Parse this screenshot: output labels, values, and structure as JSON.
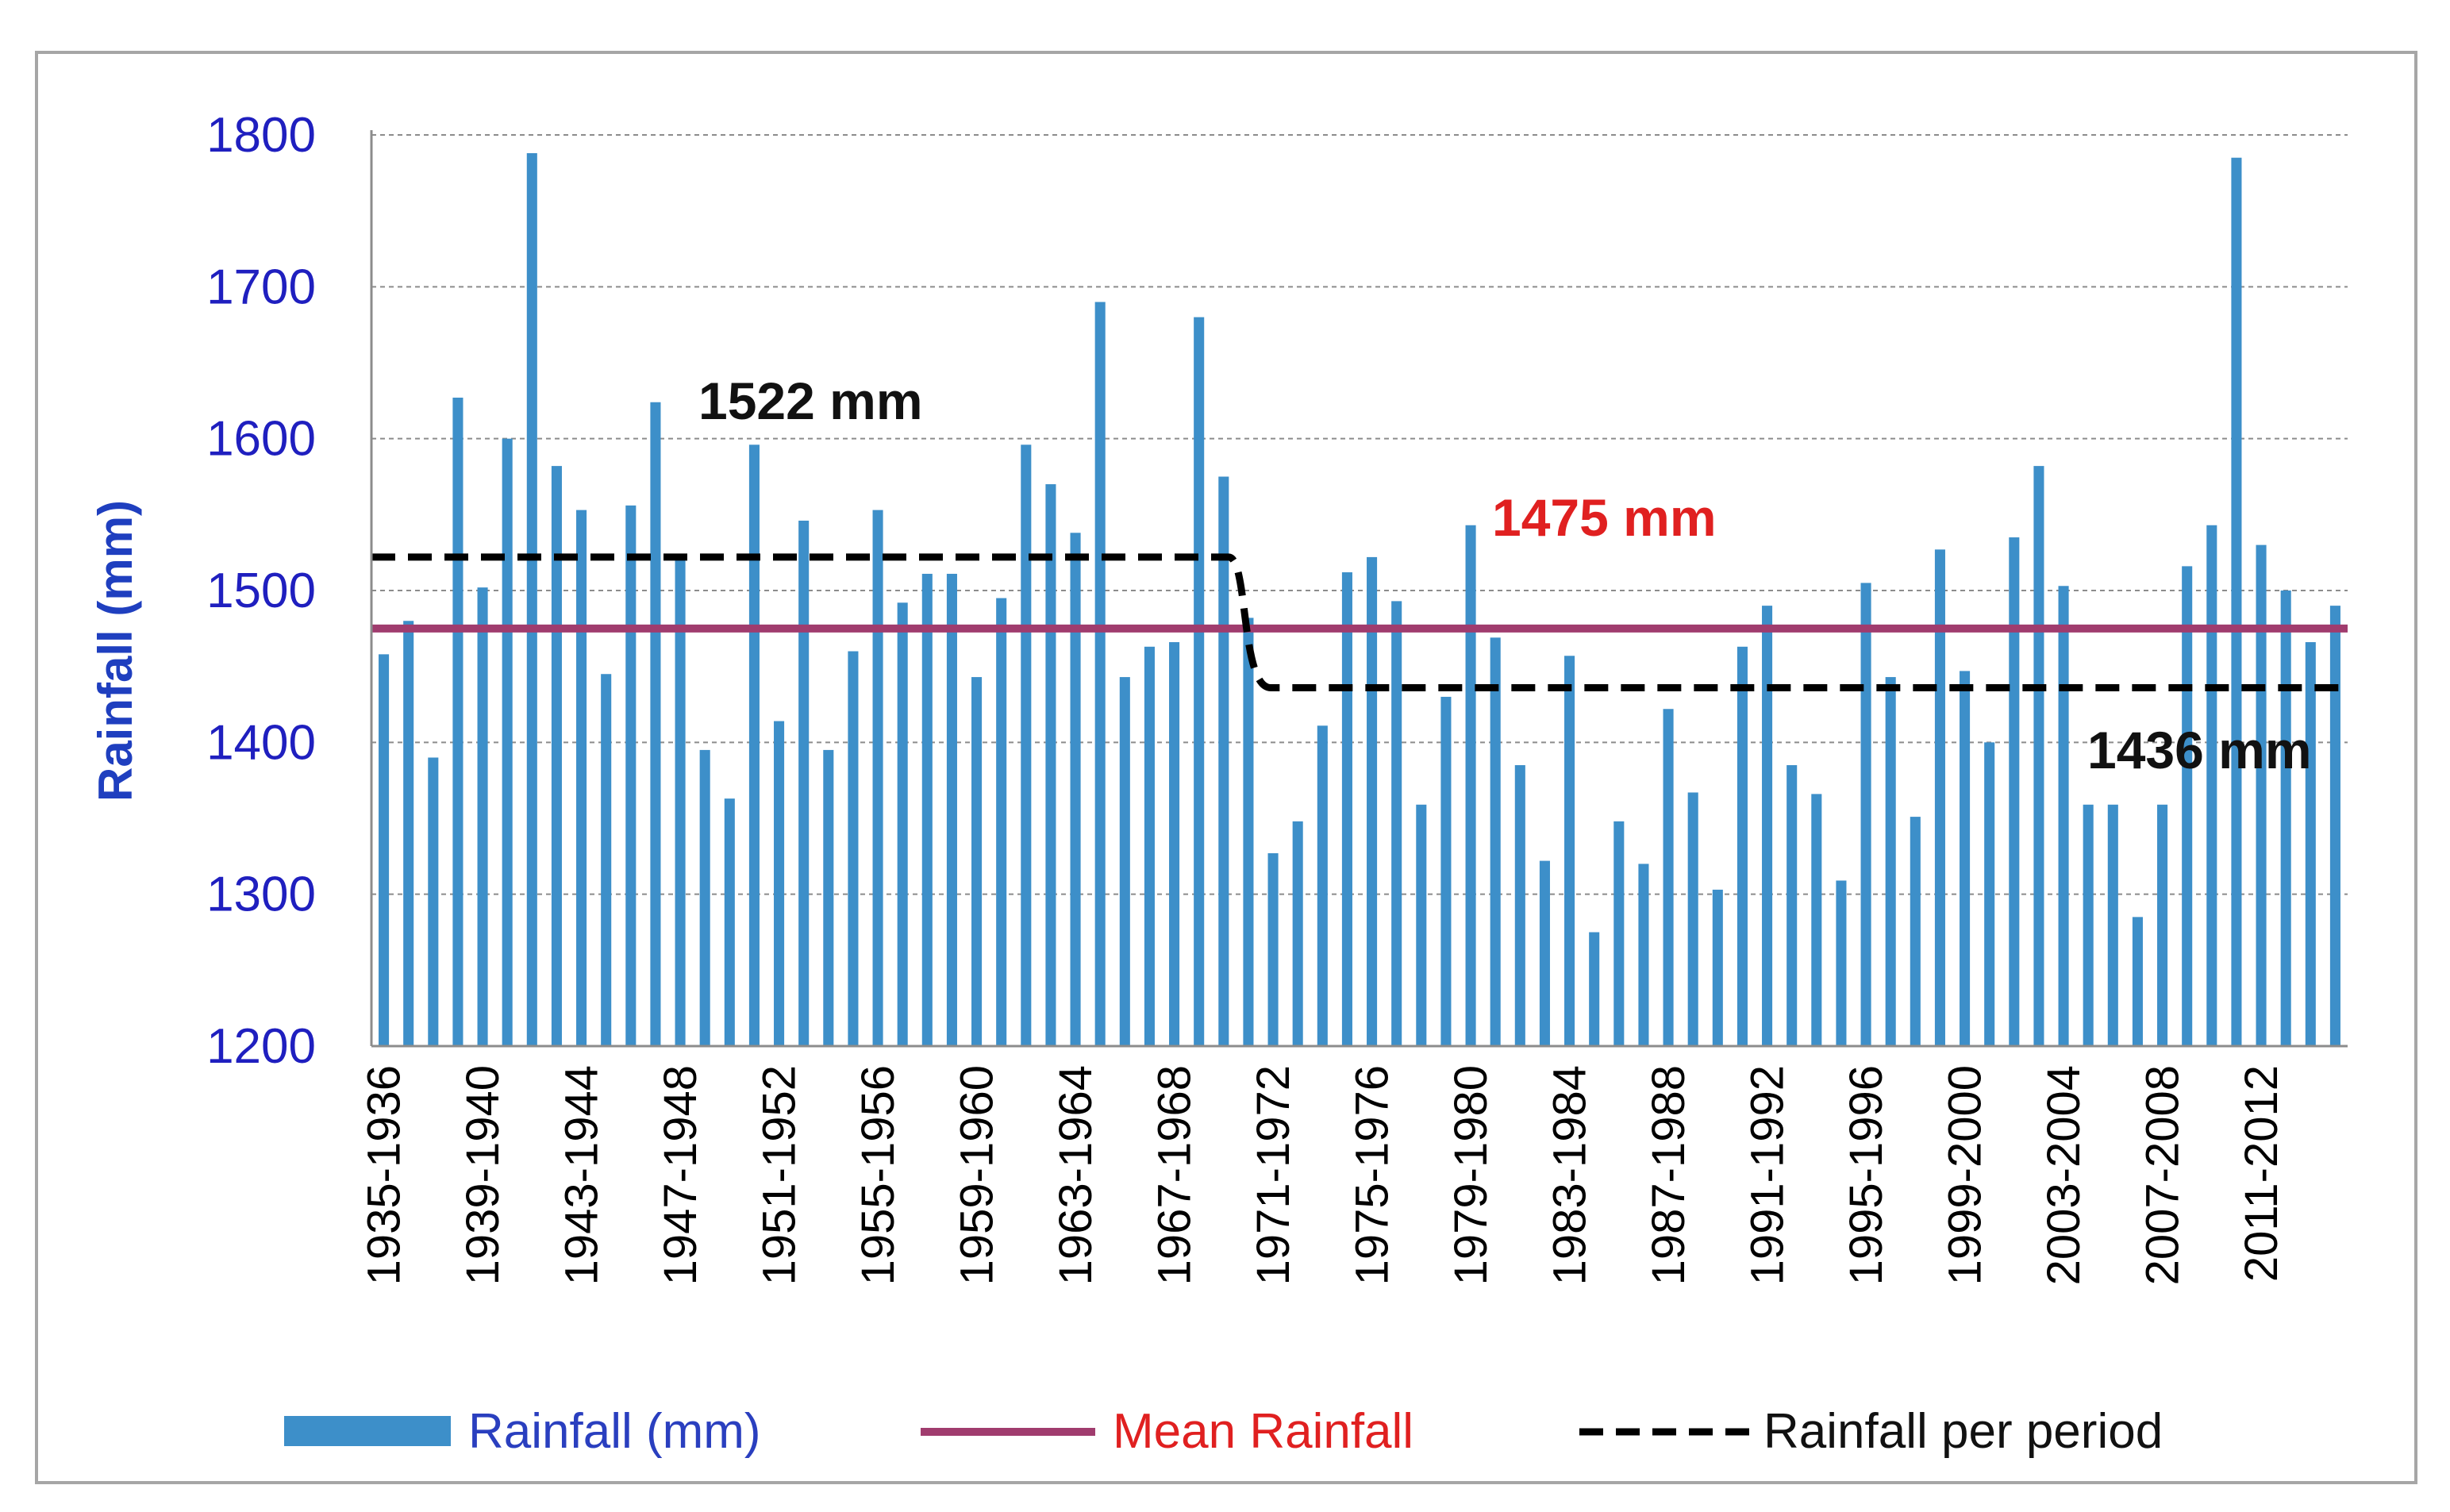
{
  "chart_data": {
    "type": "bar",
    "ylabel": "Rainfall (mm)",
    "ylim": [
      1200,
      1800
    ],
    "yticks": [
      1200,
      1300,
      1400,
      1500,
      1600,
      1700,
      1800
    ],
    "grid": true,
    "first_season_start": 1935,
    "tick_labels": [
      "1935-1936",
      "1939-1940",
      "1943-1944",
      "1947-1948",
      "1951-1952",
      "1955-1956",
      "1959-1960",
      "1963-1964",
      "1967-1968",
      "1971-1972",
      "1975-1976",
      "1979-1980",
      "1983-1984",
      "1987-1988",
      "1991-1992",
      "1995-1996",
      "1999-2000",
      "2003-2004",
      "2007-2008",
      "2011-2012"
    ],
    "values": [
      1458,
      1480,
      1390,
      1627,
      1502,
      1600,
      1788,
      1582,
      1553,
      1445,
      1556,
      1624,
      1522,
      1395,
      1363,
      1596,
      1414,
      1546,
      1395,
      1460,
      1553,
      1492,
      1511,
      1511,
      1443,
      1495,
      1596,
      1570,
      1538,
      1690,
      1443,
      1463,
      1466,
      1680,
      1575,
      1482,
      1327,
      1348,
      1411,
      1512,
      1522,
      1493,
      1359,
      1430,
      1543,
      1469,
      1385,
      1322,
      1457,
      1275,
      1348,
      1320,
      1422,
      1367,
      1303,
      1463,
      1490,
      1385,
      1366,
      1309,
      1505,
      1443,
      1351,
      1527,
      1447,
      1400,
      1535,
      1582,
      1503,
      1359,
      1359,
      1285,
      1359,
      1516,
      1543,
      1785,
      1530,
      1500,
      1466,
      1490
    ],
    "series": [
      {
        "name": "Rainfall (mm)",
        "type": "bar",
        "color": "#3d8fc9"
      },
      {
        "name": "Mean Rainfall",
        "type": "line",
        "color": "#a03c6e",
        "value": 1475
      },
      {
        "name": "Rainfall per period",
        "type": "dashed-step",
        "color": "#000000",
        "segments": [
          {
            "from": "1935-1936",
            "to": "1969-1970",
            "value": 1522
          },
          {
            "from": "1971-1972",
            "to": "2014-2015",
            "value": 1436
          }
        ]
      }
    ],
    "annotations": [
      {
        "text": "1522 mm",
        "color": "#111111"
      },
      {
        "text": "1475 mm",
        "color": "#e02020"
      },
      {
        "text": "1436 mm",
        "color": "#111111"
      }
    ],
    "legend": [
      {
        "label": "Rainfall (mm)",
        "text_color": "#2a3fbf"
      },
      {
        "label": "Mean Rainfall",
        "text_color": "#e02020"
      },
      {
        "label": "Rainfall per period",
        "text_color": "#111111"
      }
    ],
    "legend_position": "bottom"
  }
}
